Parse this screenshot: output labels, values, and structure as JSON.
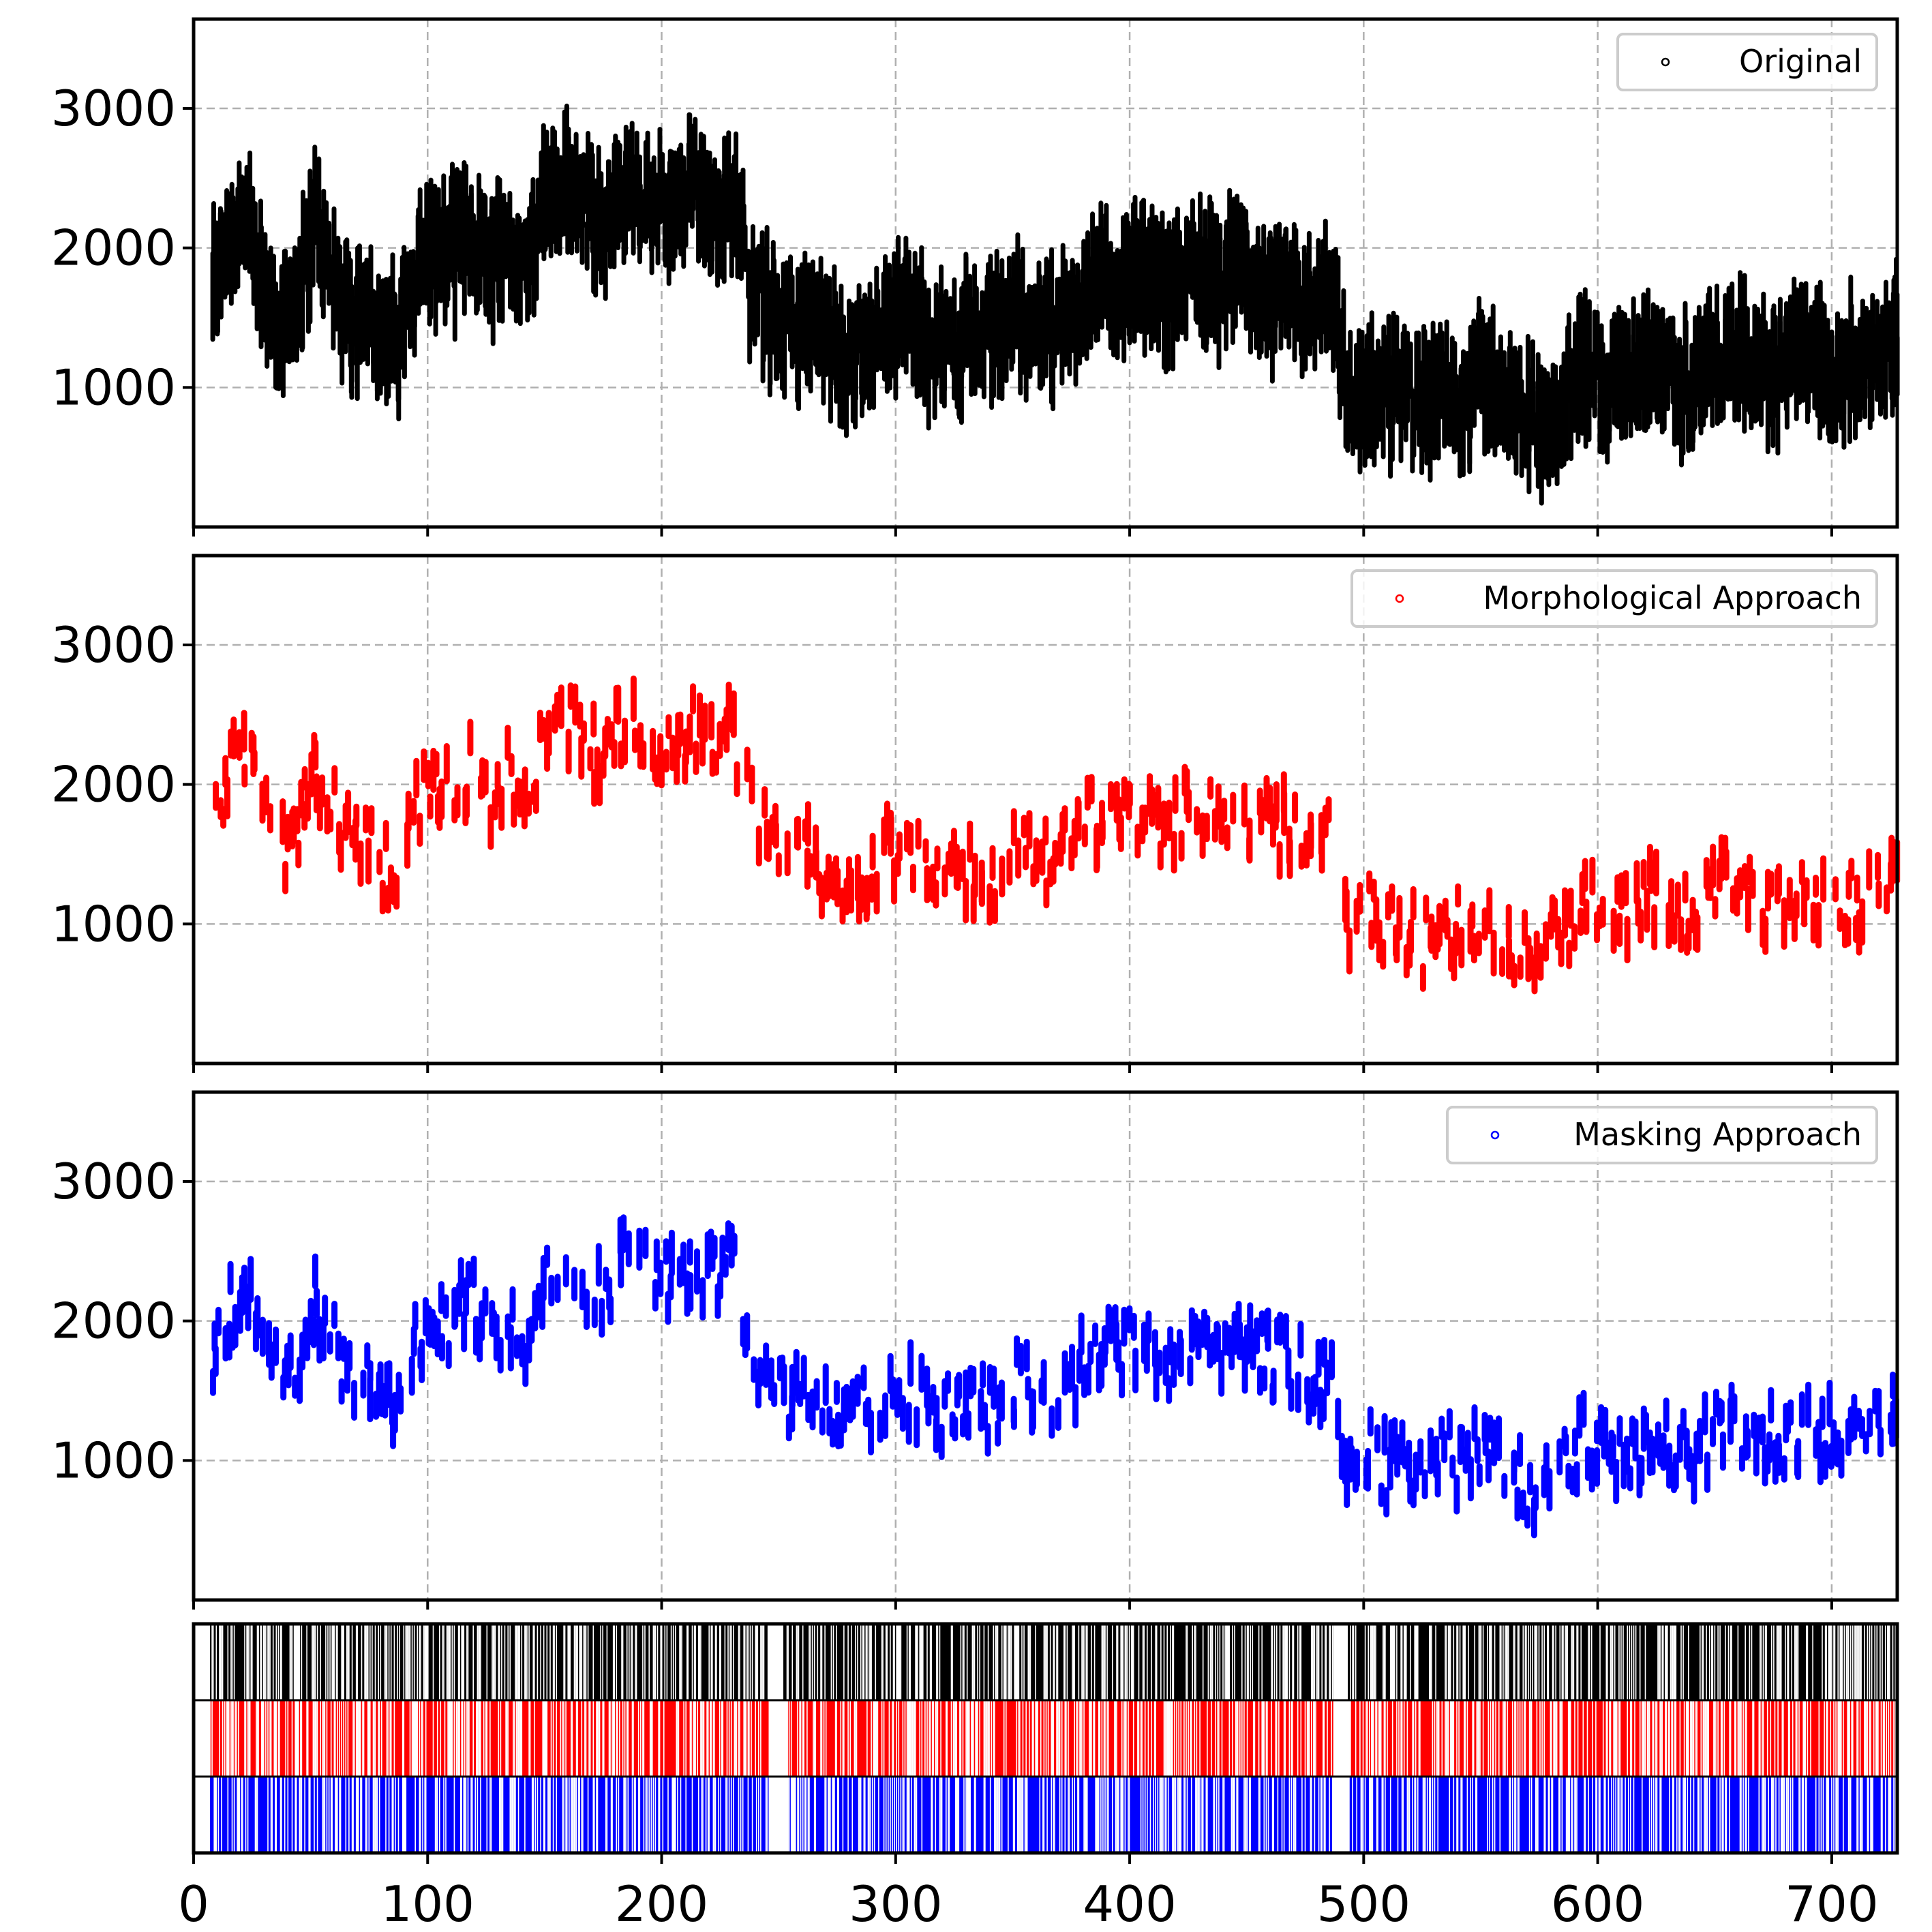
{
  "chart_data": [
    {
      "type": "scatter",
      "title": "",
      "xlabel": "",
      "ylabel": "",
      "xlim": [
        0,
        728
      ],
      "ylim": [
        0,
        3640
      ],
      "yticks": [
        1000,
        2000,
        3000
      ],
      "grid": true,
      "legend_position": "top-right",
      "series": [
        {
          "name": "Original",
          "color": "#000000",
          "x": [
            8,
            15,
            22,
            30,
            38,
            45,
            52,
            60,
            68,
            75,
            82,
            88,
            95,
            102,
            110,
            118,
            126,
            134,
            142,
            150,
            158,
            166,
            174,
            182,
            190,
            198,
            206,
            214,
            222,
            230,
            238,
            246,
            254,
            262,
            270,
            278,
            286,
            294,
            302,
            310,
            318,
            326,
            334,
            342,
            350,
            358,
            366,
            374,
            382,
            390,
            398,
            406,
            414,
            422,
            430,
            438,
            446,
            454,
            462,
            470,
            478,
            486,
            494,
            502,
            510,
            518,
            526,
            534,
            542,
            550,
            558,
            566,
            574,
            582,
            590,
            598,
            606,
            614,
            622,
            630,
            638,
            646,
            654,
            662,
            670,
            678,
            686,
            694,
            702,
            710,
            718,
            726
          ],
          "y": [
            1750,
            2100,
            2300,
            1650,
            1500,
            1700,
            2200,
            1750,
            1500,
            1550,
            1350,
            1300,
            1850,
            2000,
            1950,
            2150,
            1900,
            2050,
            1800,
            2350,
            2450,
            2300,
            2100,
            2450,
            2350,
            2300,
            2200,
            2450,
            2300,
            2400,
            1800,
            1550,
            1400,
            1450,
            1350,
            1150,
            1300,
            1450,
            1550,
            1450,
            1250,
            1350,
            1400,
            1350,
            1550,
            1450,
            1400,
            1500,
            1700,
            1750,
            1700,
            1850,
            1650,
            1800,
            1900,
            1750,
            1800,
            1750,
            1650,
            1650,
            1550,
            1600,
            800,
            1000,
            950,
            900,
            850,
            1050,
            900,
            1100,
            1000,
            800,
            750,
            800,
            1100,
            1150,
            1050,
            1000,
            1200,
            1100,
            1000,
            1150,
            1250,
            1200,
            1100,
            1150,
            1250,
            1200,
            1150,
            1200,
            1150,
            1350
          ]
        },
        {
          "name": "Morphological Approach",
          "color": "#ff0000",
          "x": [
            8,
            15,
            22,
            30,
            38,
            45,
            52,
            60,
            68,
            75,
            82,
            88,
            95,
            102,
            110,
            118,
            126,
            134,
            142,
            150,
            158,
            166,
            174,
            182,
            190,
            198,
            206,
            214,
            222,
            230,
            238,
            246,
            254,
            262,
            270,
            278,
            286,
            294,
            302,
            310,
            318,
            326,
            334,
            342,
            350,
            358,
            366,
            374,
            382,
            390,
            398,
            406,
            414,
            422,
            430,
            438,
            446,
            454,
            462,
            470,
            478,
            486,
            494,
            502,
            510,
            518,
            526,
            534,
            542,
            550,
            558,
            566,
            574,
            582,
            590,
            598,
            606,
            614,
            622,
            630,
            638,
            646,
            654,
            662,
            670,
            678,
            686,
            694,
            702,
            710,
            718,
            726
          ],
          "y": [
            1750,
            2050,
            2300,
            1700,
            1550,
            1700,
            2150,
            1800,
            1550,
            1600,
            1400,
            1350,
            1850,
            2000,
            1950,
            2150,
            1900,
            2050,
            1850,
            2400,
            2450,
            2350,
            2150,
            2450,
            2400,
            2300,
            2250,
            2450,
            2350,
            2400,
            1850,
            1600,
            1450,
            1500,
            1400,
            1200,
            1350,
            1450,
            1550,
            1450,
            1300,
            1350,
            1400,
            1350,
            1550,
            1500,
            1400,
            1550,
            1750,
            1800,
            1750,
            1850,
            1700,
            1800,
            1900,
            1750,
            1800,
            1750,
            1700,
            1700,
            1600,
            1650,
            850,
            1050,
            950,
            950,
            850,
            1050,
            950,
            1100,
            1000,
            850,
            800,
            850,
            1100,
            1150,
            1100,
            1050,
            1200,
            1100,
            1050,
            1150,
            1250,
            1200,
            1150,
            1150,
            1250,
            1200,
            1150,
            1200,
            1150,
            1400
          ]
        },
        {
          "name": "Masking Approach",
          "color": "#0000ff",
          "x": [
            8,
            15,
            22,
            30,
            38,
            45,
            52,
            60,
            68,
            75,
            82,
            88,
            95,
            102,
            110,
            118,
            126,
            134,
            142,
            150,
            158,
            166,
            174,
            182,
            190,
            198,
            206,
            214,
            222,
            230,
            238,
            246,
            254,
            262,
            270,
            278,
            286,
            294,
            302,
            310,
            318,
            326,
            334,
            342,
            350,
            358,
            366,
            374,
            382,
            390,
            398,
            406,
            414,
            422,
            430,
            438,
            446,
            454,
            462,
            470,
            478,
            486,
            494,
            502,
            510,
            518,
            526,
            534,
            542,
            550,
            558,
            566,
            574,
            582,
            590,
            598,
            606,
            614,
            622,
            630,
            638,
            646,
            654,
            662,
            670,
            678,
            686,
            694,
            702,
            710,
            718,
            726
          ],
          "y": [
            1750,
            2050,
            2300,
            1700,
            1550,
            1650,
            2150,
            1800,
            1550,
            1600,
            1400,
            1350,
            1850,
            2000,
            1950,
            2150,
            1900,
            2050,
            1850,
            2400,
            2450,
            2350,
            2150,
            2450,
            2400,
            2300,
            2250,
            2450,
            2350,
            2400,
            1850,
            1600,
            1450,
            1500,
            1400,
            1200,
            1350,
            1450,
            1550,
            1450,
            1300,
            1350,
            1400,
            1350,
            1550,
            1500,
            1400,
            1550,
            1750,
            1800,
            1750,
            1850,
            1700,
            1800,
            1900,
            1750,
            1800,
            1750,
            1700,
            1700,
            1600,
            1650,
            850,
            1050,
            950,
            950,
            850,
            1050,
            950,
            1100,
            1000,
            850,
            800,
            850,
            1100,
            1150,
            1100,
            1050,
            1200,
            1100,
            1050,
            1150,
            1250,
            1200,
            1150,
            1150,
            1250,
            1200,
            1150,
            1200,
            1150,
            1400
          ]
        }
      ]
    },
    {
      "type": "eventplot",
      "xlim": [
        0,
        728
      ],
      "xticks": [
        0,
        100,
        200,
        300,
        400,
        500,
        600,
        700
      ],
      "rows": [
        {
          "name": "Original",
          "color": "#000000",
          "gaps": [
            [
              246,
              252
            ],
            [
              487,
              493
            ]
          ]
        },
        {
          "name": "Morphological Approach",
          "color": "#ff0000",
          "gaps": [
            [
              246,
              254
            ],
            [
              487,
              494
            ]
          ]
        },
        {
          "name": "Masking Approach",
          "color": "#0000ff",
          "gaps": [
            [
              246,
              254
            ],
            [
              487,
              494
            ]
          ]
        }
      ],
      "start": 7,
      "end": 727
    }
  ]
}
